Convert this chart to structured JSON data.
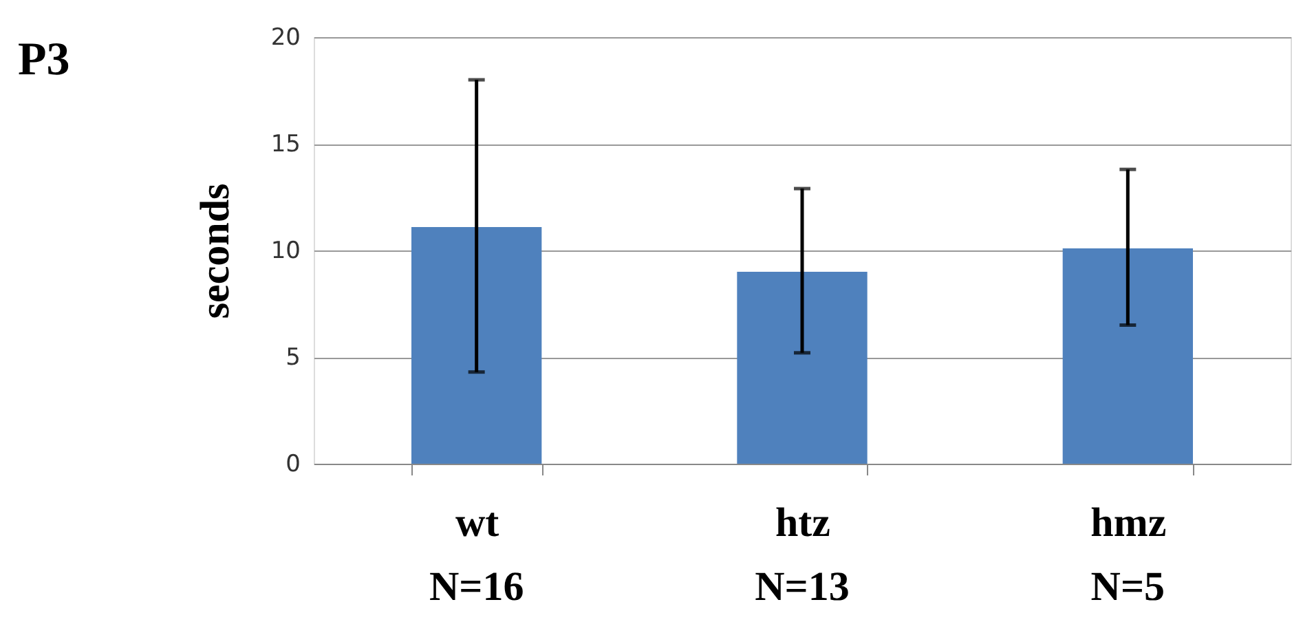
{
  "chart_data": {
    "type": "bar",
    "title": "P3",
    "ylabel": "seconds",
    "categories": [
      "wt",
      "htz",
      "hmz"
    ],
    "values": [
      11.1,
      9.0,
      10.1
    ],
    "errors": [
      [
        4.3,
        18.0
      ],
      [
        5.2,
        12.9
      ],
      [
        6.5,
        13.8
      ]
    ],
    "color": "#4f81bd",
    "ylim": [
      0,
      20
    ],
    "yticks": [
      0,
      5,
      10,
      15,
      20
    ],
    "grid": "y",
    "annotations": [
      "N=16",
      "N=13",
      "N=5"
    ]
  }
}
